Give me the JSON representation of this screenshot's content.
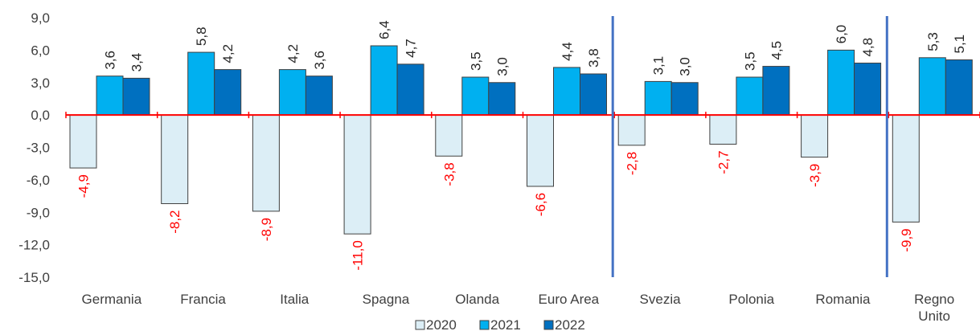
{
  "chart_data": {
    "type": "bar",
    "categories": [
      "Germania",
      "Francia",
      "Italia",
      "Spagna",
      "Olanda",
      "Euro Area",
      "Svezia",
      "Polonia",
      "Romania",
      "Regno Unito"
    ],
    "category_lines": [
      [
        "Germania"
      ],
      [
        "Francia"
      ],
      [
        "Italia"
      ],
      [
        "Spagna"
      ],
      [
        "Olanda"
      ],
      [
        "Euro Area"
      ],
      [
        "Svezia"
      ],
      [
        "Polonia"
      ],
      [
        "Romania"
      ],
      [
        "Regno",
        "Unito"
      ]
    ],
    "series": [
      {
        "name": "2020",
        "color": "#dceef6",
        "label_color": "#ff0000",
        "values": [
          -4.9,
          -8.2,
          -8.9,
          -11.0,
          -3.8,
          -6.6,
          -2.8,
          -2.7,
          -3.9,
          -9.9
        ],
        "labels": [
          "-4,9",
          "-8,2",
          "-8,9",
          "-11,0",
          "-3,8",
          "-6,6",
          "-2,8",
          "-2,7",
          "-3,9",
          "-9,9"
        ]
      },
      {
        "name": "2021",
        "color": "#00b0f0",
        "label_color": "#262626",
        "values": [
          3.6,
          5.8,
          4.2,
          6.4,
          3.5,
          4.4,
          3.1,
          3.5,
          6.0,
          5.3
        ],
        "labels": [
          "3,6",
          "5,8",
          "4,2",
          "6,4",
          "3,5",
          "4,4",
          "3,1",
          "3,5",
          "6,0",
          "5,3"
        ]
      },
      {
        "name": "2022",
        "color": "#0070c0",
        "label_color": "#262626",
        "values": [
          3.4,
          4.2,
          3.6,
          4.7,
          3.0,
          3.8,
          3.0,
          4.5,
          4.8,
          5.1
        ],
        "labels": [
          "3,4",
          "4,2",
          "3,6",
          "4,7",
          "3,0",
          "3,8",
          "3,0",
          "4,5",
          "4,8",
          "5,1"
        ]
      }
    ],
    "ylim": [
      -15,
      9
    ],
    "yticks": [
      9,
      6,
      3,
      0,
      -3,
      -6,
      -9,
      -12,
      -15
    ],
    "ytick_labels": [
      "9,0",
      "6,0",
      "3,0",
      "0,0",
      "-3,0",
      "-6,0",
      "-9,0",
      "-12,0",
      "-15,0"
    ],
    "zero_line_color": "#ff0000",
    "separator_color": "#4472c4",
    "legend_position": "bottom-center",
    "grid": false
  }
}
